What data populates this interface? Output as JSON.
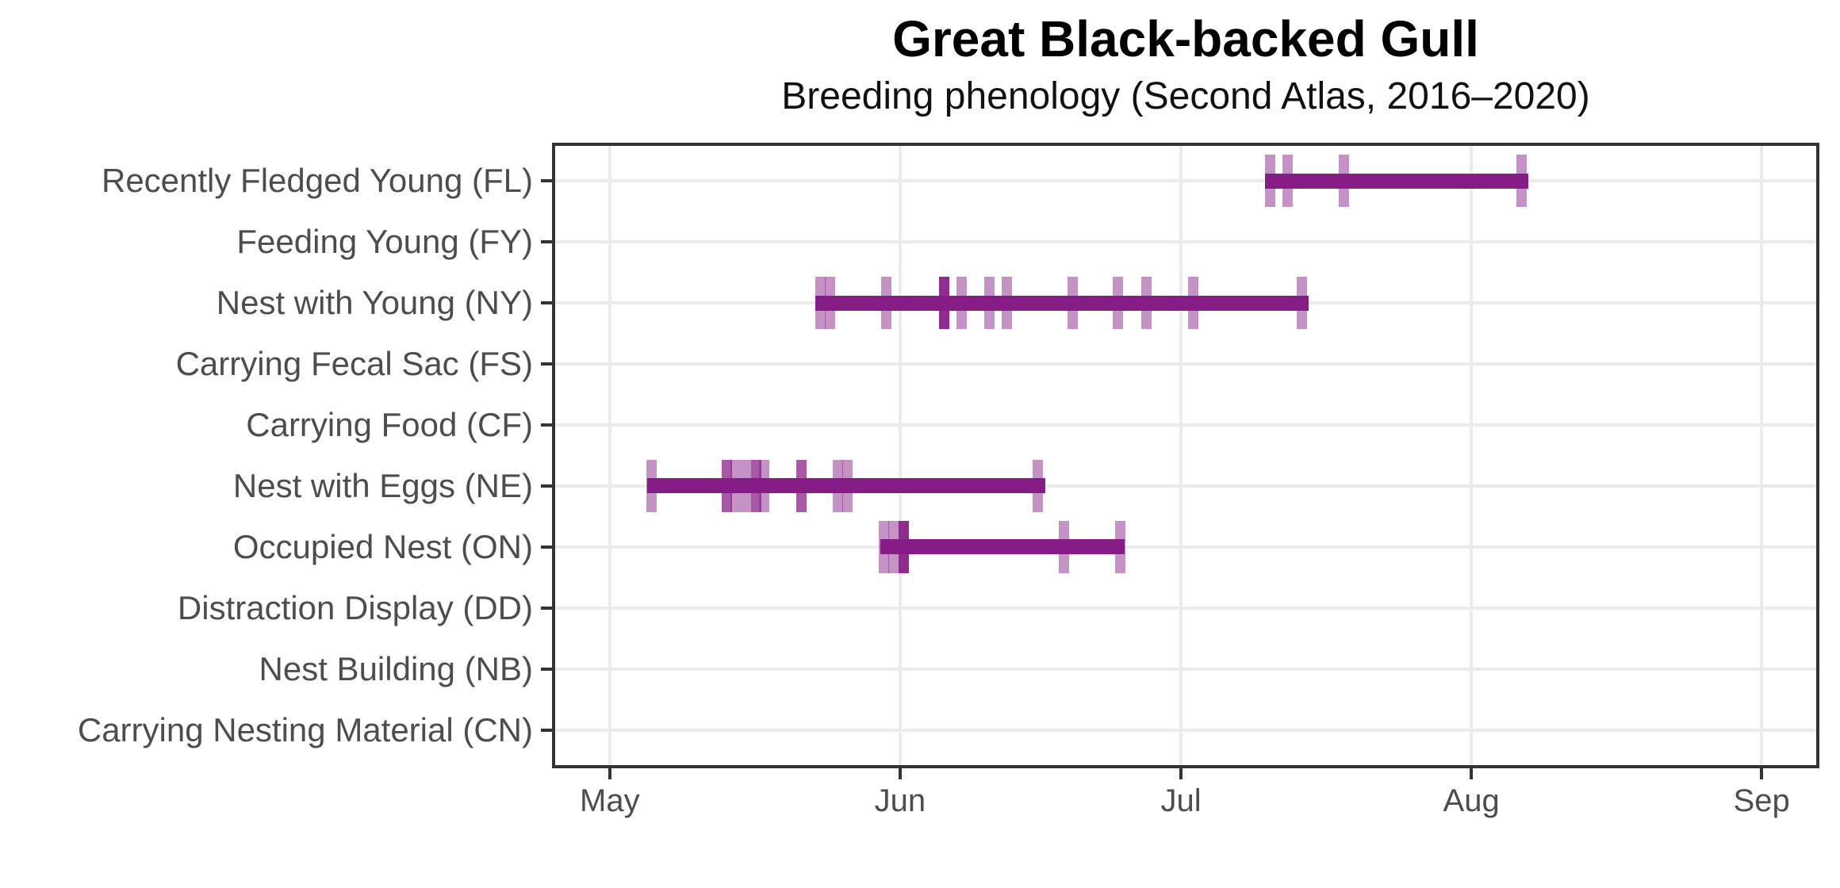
{
  "chart_data": {
    "type": "range_bar",
    "title": "Great Black-backed Gull",
    "subtitle": "Breeding phenology (Second Atlas, 2016–2020)",
    "x_axis": {
      "tick_labels": [
        "May",
        "Jun",
        "Jul",
        "Aug",
        "Sep"
      ],
      "tick_days": [
        6,
        37,
        67,
        98,
        129
      ],
      "domain_days": [
        0,
        135
      ],
      "domain_dates": [
        "Apr 25",
        "Sep 7"
      ],
      "grid": "on"
    },
    "y_axis": {
      "grid": "on",
      "categories_top_to_bottom": [
        "Recently Fledged Young (FL)",
        "Feeding Young (FY)",
        "Nest with Young (NY)",
        "Carrying Fecal Sac (FS)",
        "Carrying Food (CF)",
        "Nest with Eggs (NE)",
        "Occupied Nest (ON)",
        "Distraction Display (DD)",
        "Nest Building (NB)",
        "Carrying Nesting Material (CN)"
      ]
    },
    "day_unit": "days since Apr 25",
    "series": [
      {
        "code": "FL",
        "label": "Recently Fledged Young (FL)",
        "bar": {
          "start_day": 75.95,
          "end_day": 104.05,
          "start_date": "Jul 10",
          "end_date": "Aug 7"
        },
        "observations": [
          {
            "day": 76.5,
            "date": "Jul 10",
            "level": 1
          },
          {
            "day": 78.4,
            "date": "Jul 12",
            "level": 1
          },
          {
            "day": 84.4,
            "date": "Jul 18",
            "level": 1
          },
          {
            "day": 103.4,
            "date": "Aug 6",
            "level": 1
          }
        ]
      },
      {
        "code": "FY",
        "label": "Feeding Young (FY)",
        "bar": null,
        "observations": []
      },
      {
        "code": "NY",
        "label": "Nest with Young (NY)",
        "bar": {
          "start_day": 27.97,
          "end_day": 80.6,
          "start_date": "May 23",
          "end_date": "Jul 15"
        },
        "observations": [
          {
            "day": 28.5,
            "date": "May 23",
            "level": 1
          },
          {
            "day": 29.5,
            "date": "May 24",
            "level": 1
          },
          {
            "day": 35.5,
            "date": "May 30",
            "level": 1
          },
          {
            "day": 41.7,
            "date": "Jun 6",
            "level": 3
          },
          {
            "day": 43.6,
            "date": "Jun 8",
            "level": 1
          },
          {
            "day": 46.5,
            "date": "Jun 10",
            "level": 1
          },
          {
            "day": 48.4,
            "date": "Jun 12",
            "level": 1
          },
          {
            "day": 55.4,
            "date": "Jun 19",
            "level": 1
          },
          {
            "day": 60.3,
            "date": "Jun 24",
            "level": 1
          },
          {
            "day": 63.3,
            "date": "Jun 27",
            "level": 1
          },
          {
            "day": 68.3,
            "date": "Jul 2",
            "level": 1
          },
          {
            "day": 79.9,
            "date": "Jul 14",
            "level": 1
          }
        ]
      },
      {
        "code": "FS",
        "label": "Carrying Fecal Sac (FS)",
        "bar": null,
        "observations": []
      },
      {
        "code": "CF",
        "label": "Carrying Food (CF)",
        "bar": null,
        "observations": []
      },
      {
        "code": "NE",
        "label": "Nest with Eggs (NE)",
        "bar": {
          "start_day": 9.96,
          "end_day": 52.55,
          "start_date": "May 5",
          "end_date": "Jun 17"
        },
        "observations": [
          {
            "day": 10.5,
            "date": "May 5",
            "level": 1
          },
          {
            "day": 18.5,
            "date": "May 13",
            "level": 2
          },
          {
            "day": 19.4,
            "date": "May 14",
            "level": 1
          },
          {
            "day": 20.5,
            "date": "May 15",
            "level": 1
          },
          {
            "day": 21.6,
            "date": "May 16",
            "level": 2
          },
          {
            "day": 22.5,
            "date": "May 17",
            "level": 1
          },
          {
            "day": 26.5,
            "date": "May 21",
            "level": 2
          },
          {
            "day": 30.4,
            "date": "May 25",
            "level": 1
          },
          {
            "day": 31.4,
            "date": "May 26",
            "level": 1
          },
          {
            "day": 51.7,
            "date": "Jun 16",
            "level": 1
          }
        ]
      },
      {
        "code": "ON",
        "label": "Occupied Nest (ON)",
        "bar": {
          "start_day": 34.9,
          "end_day": 61.0,
          "start_date": "May 30",
          "end_date": "Jun 25"
        },
        "observations": [
          {
            "day": 35.3,
            "date": "May 30",
            "level": 1
          },
          {
            "day": 36.3,
            "date": "May 31",
            "level": 1
          },
          {
            "day": 37.4,
            "date": "Jun 1",
            "level": 3
          },
          {
            "day": 54.5,
            "date": "Jun 18",
            "level": 1
          },
          {
            "day": 60.5,
            "date": "Jun 24",
            "level": 1
          }
        ]
      },
      {
        "code": "DD",
        "label": "Distraction Display (DD)",
        "bar": null,
        "observations": []
      },
      {
        "code": "NB",
        "label": "Nest Building (NB)",
        "bar": null,
        "observations": []
      },
      {
        "code": "CN",
        "label": "Carrying Nesting Material (CN)",
        "bar": null,
        "observations": []
      }
    ],
    "colors": {
      "bar": "#861C85",
      "tick_rgb": "134,28,133",
      "tick_opacity_by_level": {
        "1": 0.48,
        "2": 0.73,
        "3": 0.93
      },
      "gridline": "#EBEBEB",
      "axis_line": "#333333",
      "axis_text": "#4D4D4D",
      "title_text": "#000000"
    }
  }
}
